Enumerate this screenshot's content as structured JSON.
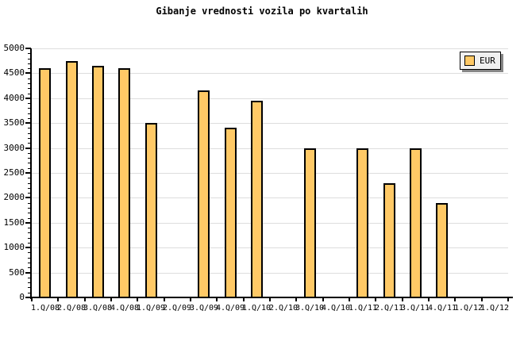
{
  "chart_data": {
    "type": "bar",
    "title": "Gibanje vrednosti vozila po kvartalih",
    "xlabel": "",
    "ylabel": "",
    "categories": [
      "1.Q/08",
      "2.Q/08",
      "3.Q/08",
      "4.Q/08",
      "1.Q/09",
      "2.Q/09",
      "3.Q/09",
      "4.Q/09",
      "1.Q/10",
      "2.Q/10",
      "3.Q/10",
      "4.Q/10",
      "1.Q/11",
      "2.Q/11",
      "3.Q/11",
      "4.Q/11",
      "1.Q/12",
      "1.Q/12"
    ],
    "values": [
      4600,
      4750,
      4650,
      4600,
      3500,
      null,
      4150,
      3400,
      3950,
      null,
      3000,
      null,
      3000,
      2300,
      3000,
      1900,
      null,
      null
    ],
    "ylim": [
      0,
      5000
    ],
    "yticks": [
      0,
      500,
      1000,
      1500,
      2000,
      2500,
      3000,
      3500,
      4000,
      4500,
      5000
    ],
    "y_minor_step": 100,
    "grid": "horizontal-major",
    "legend": {
      "label": "EUR",
      "position": "top-right"
    },
    "colors": {
      "bar_fill": "#FFC966",
      "bar_border": "#000000",
      "grid": "#DDDDDD",
      "axis": "#000000",
      "text": "#000000",
      "legend_bg": "#F0F0F0",
      "legend_shadow": "#888888",
      "background": "#FFFFFF"
    }
  }
}
